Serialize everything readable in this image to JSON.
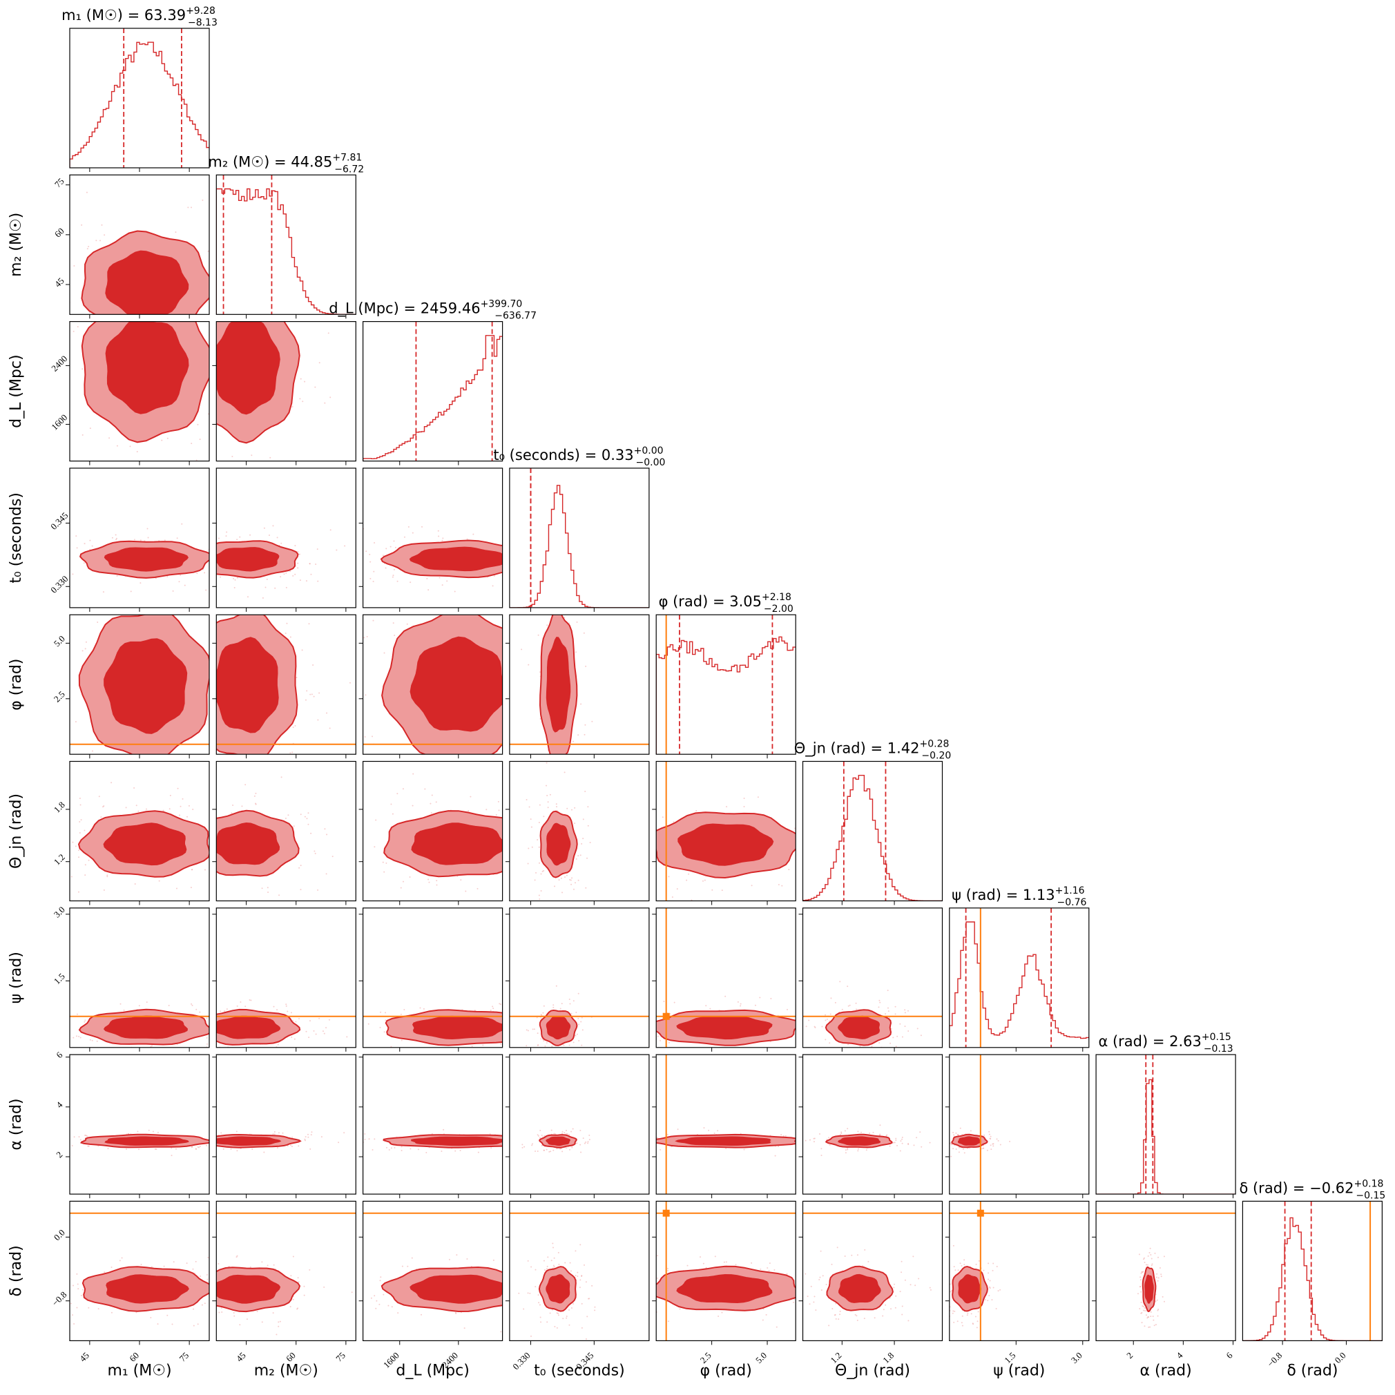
{
  "chart_data": {
    "type": "corner",
    "colors": {
      "posterior": "#d62728",
      "posterior_light": "#ee9b9b",
      "truth": "#ff7f0e",
      "frame": "#000000"
    },
    "parameters": [
      {
        "key": "m1",
        "axis_label": "m₁ (M☉)",
        "title": "m₁ (M☉) = 63.39",
        "median": 63.39,
        "err_plus": "+9.28",
        "err_minus": "−8.13",
        "range": [
          39,
          81
        ],
        "ticks": [
          45,
          60,
          75
        ],
        "tick_labels": [
          "45",
          "60",
          "75"
        ],
        "truth": null,
        "hist_pattern": "peaked",
        "hist_peak": 62,
        "hist_width": 10
      },
      {
        "key": "m2",
        "axis_label": "m₂ (M☉)",
        "title": "m₂ (M☉) = 44.85",
        "median": 44.85,
        "err_plus": "+7.81",
        "err_minus": "−6.72",
        "range": [
          36,
          78
        ],
        "ticks": [
          45,
          60,
          75
        ],
        "tick_labels": [
          "45",
          "60",
          "75"
        ],
        "truth": null,
        "hist_pattern": "left-plateau",
        "hist_peak": 45,
        "hist_width": 8
      },
      {
        "key": "dL",
        "axis_label": "d_L (Mpc)",
        "title": "d_L (Mpc) = 2459.46",
        "median": 2459.46,
        "err_plus": "+399.70",
        "err_minus": "−636.77",
        "range": [
          1100,
          3000
        ],
        "ticks": [
          1600,
          2400
        ],
        "tick_labels": [
          "1600",
          "2400"
        ],
        "truth": null,
        "hist_pattern": "rising",
        "hist_peak": 2800,
        "hist_width": 400
      },
      {
        "key": "t0",
        "axis_label": "t₀ (seconds)",
        "title": "t₀ (seconds) = 0.33",
        "median": 0.33,
        "err_plus": "+0.00",
        "err_minus": "−0.00",
        "range": [
          0.325,
          0.358
        ],
        "ticks": [
          0.33,
          0.345
        ],
        "tick_labels": [
          "0.330",
          "0.345"
        ],
        "truth": null,
        "hist_pattern": "peaked",
        "hist_peak": 0.3365,
        "hist_width": 0.0022
      },
      {
        "key": "phi",
        "axis_label": "φ (rad)",
        "title": "φ (rad) = 3.05",
        "median": 3.05,
        "err_plus": "+2.18",
        "err_minus": "−2.00",
        "range": [
          0,
          6.28
        ],
        "ticks": [
          2.5,
          5.0
        ],
        "tick_labels": [
          "2.5",
          "5.0"
        ],
        "truth": 0.45,
        "hist_pattern": "flat",
        "hist_peak": 3.1,
        "hist_width": 3
      },
      {
        "key": "theta_jn",
        "axis_label": "Θ_jn (rad)",
        "title": "Θ_jn (rad) = 1.42",
        "median": 1.42,
        "err_plus": "+0.28",
        "err_minus": "−0.20",
        "range": [
          0.75,
          2.35
        ],
        "ticks": [
          1.2,
          1.8
        ],
        "tick_labels": [
          "1.2",
          "1.8"
        ],
        "truth": null,
        "hist_pattern": "peaked",
        "hist_peak": 1.4,
        "hist_width": 0.19
      },
      {
        "key": "psi",
        "axis_label": "ψ (rad)",
        "title": "ψ (rad) = 1.13",
        "median": 1.13,
        "err_plus": "+1.16",
        "err_minus": "−0.76",
        "range": [
          0,
          3.14
        ],
        "ticks": [
          1.5,
          3.0
        ],
        "tick_labels": [
          "1.5",
          "3.0"
        ],
        "truth": 0.7,
        "hist_pattern": "bimodal",
        "hist_peak": 0.45,
        "hist_width": 0.2
      },
      {
        "key": "alpha",
        "axis_label": "α (rad)",
        "title": "α (rad) = 2.63",
        "median": 2.63,
        "err_plus": "+0.15",
        "err_minus": "−0.13",
        "range": [
          0.5,
          6.1
        ],
        "ticks": [
          2,
          4,
          6
        ],
        "tick_labels": [
          "2",
          "4",
          "6"
        ],
        "truth": null,
        "hist_pattern": "peaked",
        "hist_peak": 2.63,
        "hist_width": 0.13
      },
      {
        "key": "delta",
        "axis_label": "δ (rad)",
        "title": "δ (rad) = −0.62",
        "median": -0.62,
        "err_plus": "+0.18",
        "err_minus": "−0.15",
        "range": [
          -1.3,
          0.45
        ],
        "ticks": [
          -0.8,
          0.0
        ],
        "tick_labels": [
          "−0.8",
          "0.0"
        ],
        "truth": 0.3,
        "hist_pattern": "peaked",
        "hist_peak": -0.65,
        "hist_width": 0.14
      }
    ]
  }
}
